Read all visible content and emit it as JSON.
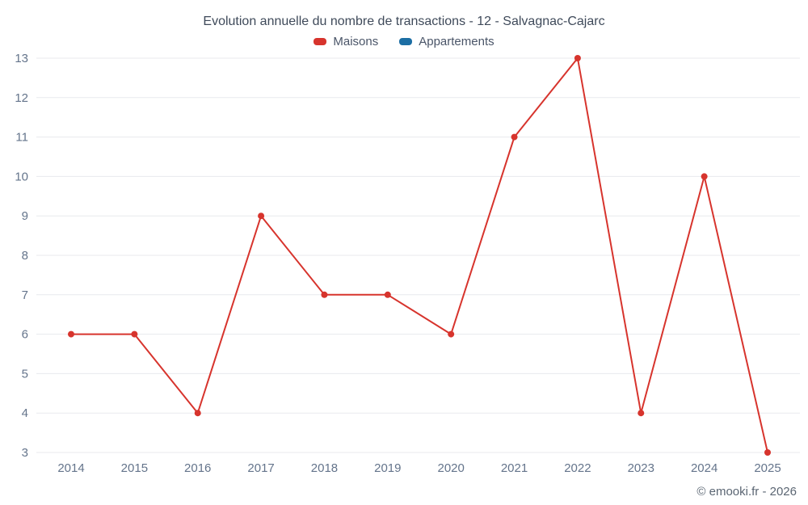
{
  "chart_data": {
    "type": "line",
    "title": "Evolution annuelle du nombre de transactions - 12 - Salvagnac-Cajarc",
    "categories": [
      "2014",
      "2015",
      "2016",
      "2017",
      "2018",
      "2019",
      "2020",
      "2021",
      "2022",
      "2023",
      "2024",
      "2025"
    ],
    "series": [
      {
        "name": "Maisons",
        "color": "#d7342d",
        "values": [
          6,
          6,
          4,
          9,
          7,
          7,
          6,
          11,
          13,
          4,
          10,
          3
        ]
      },
      {
        "name": "Appartements",
        "color": "#1c6ea4",
        "values": []
      }
    ],
    "xlabel": "",
    "ylabel": "",
    "ylim": [
      3,
      13
    ],
    "ystep": 1,
    "grid": "horizontal",
    "legend_position": "top",
    "marker": "circle"
  },
  "footer": {
    "copyright": "© emooki.fr - 2026"
  },
  "colors": {
    "background": "#ffffff",
    "title": "#3f4a5a",
    "axis_label": "#64748b",
    "gridline": "#e8eaed"
  }
}
